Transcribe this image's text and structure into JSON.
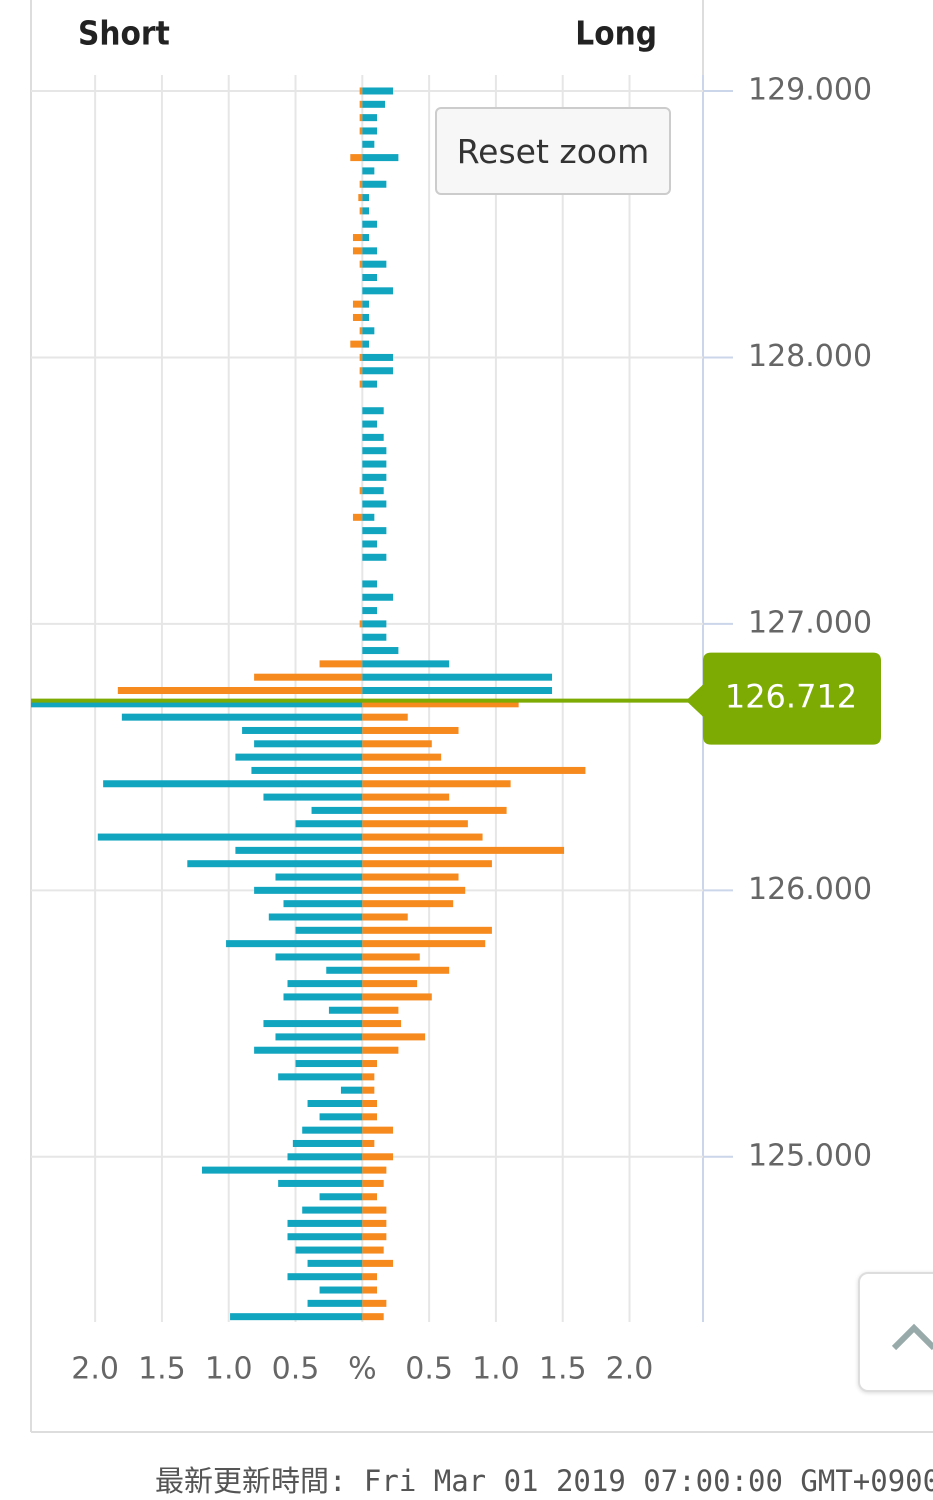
{
  "header": {
    "footer": "最新更新時間: Fri Mar 01 2019 07:00:00 GMT+0900",
    "reset_button": "Reset zoom"
  },
  "chart_data": {
    "type": "butterfly-bar",
    "y": [
      129,
      128.95,
      128.9,
      128.85,
      128.8,
      128.75,
      128.7,
      128.65,
      128.6,
      128.55,
      128.5,
      128.45,
      128.4,
      128.35,
      128.3,
      128.25,
      128.2,
      128.15,
      128.1,
      128.05,
      128,
      127.95,
      127.9,
      127.85,
      127.8,
      127.75,
      127.7,
      127.65,
      127.6,
      127.55,
      127.5,
      127.45,
      127.4,
      127.35,
      127.3,
      127.25,
      127.2,
      127.15,
      127.1,
      127.05,
      127,
      126.95,
      126.9,
      126.85,
      126.8,
      126.75,
      126.7,
      126.65,
      126.6,
      126.55,
      126.5,
      126.45,
      126.4,
      126.35,
      126.3,
      126.25,
      126.2,
      126.15,
      126.1,
      126.05,
      126,
      125.95,
      125.9,
      125.85,
      125.8,
      125.75,
      125.7,
      125.65,
      125.6,
      125.55,
      125.5,
      125.45,
      125.4,
      125.35,
      125.3,
      125.25,
      125.2,
      125.15,
      125.1,
      125.05,
      125,
      124.95,
      124.9,
      124.85,
      124.8,
      124.75,
      124.7,
      124.65,
      124.6,
      124.55,
      124.5,
      124.45,
      124.4
    ],
    "series": [
      {
        "name": "Short",
        "side": "left",
        "color": "#f68a1e",
        "color_below": "#12a5bf",
        "values": [
          0.02,
          0.02,
          0.02,
          0.02,
          0,
          0.09,
          0,
          0.02,
          0.03,
          0.02,
          0,
          0.07,
          0.07,
          0.02,
          0,
          0,
          0.07,
          0.07,
          0.02,
          0.09,
          0.02,
          0.02,
          0.02,
          0,
          0,
          0,
          0,
          0,
          0,
          0,
          0.02,
          0,
          0.07,
          0,
          0,
          0,
          0,
          0,
          0,
          0,
          0.02,
          0,
          0,
          0.32,
          0.81,
          1.83,
          2.48,
          1.8,
          0.9,
          0.81,
          0.95,
          0.83,
          1.94,
          0.74,
          0.38,
          0.5,
          1.98,
          0.95,
          1.31,
          0.65,
          0.81,
          0.59,
          0.7,
          0.5,
          1.02,
          0.65,
          0.27,
          0.56,
          0.59,
          0.25,
          0.74,
          0.65,
          0.81,
          0.5,
          0.63,
          0.16,
          0.41,
          0.32,
          0.45,
          0.52,
          0.56,
          1.2,
          0.63,
          0.32,
          0.45,
          0.56,
          0.56,
          0.5,
          0.41,
          0.56,
          0.32,
          0.41,
          0.99
        ]
      },
      {
        "name": "Long",
        "side": "right",
        "color": "#12a5bf",
        "color_below": "#f68a1e",
        "values": [
          0.23,
          0.17,
          0.11,
          0.11,
          0.09,
          0.27,
          0.09,
          0.18,
          0.05,
          0.05,
          0.11,
          0.05,
          0.11,
          0.18,
          0.11,
          0.23,
          0.05,
          0.05,
          0.09,
          0.05,
          0.23,
          0.23,
          0.11,
          0,
          0.16,
          0.11,
          0.16,
          0.18,
          0.18,
          0.18,
          0.16,
          0.18,
          0.09,
          0.18,
          0.11,
          0.18,
          0,
          0.11,
          0.23,
          0.11,
          0.18,
          0.18,
          0.27,
          0.65,
          1.42,
          1.42,
          1.17,
          0.34,
          0.72,
          0.52,
          0.59,
          1.67,
          1.11,
          0.65,
          1.08,
          0.79,
          0.9,
          1.51,
          0.97,
          0.72,
          0.77,
          0.68,
          0.34,
          0.97,
          0.92,
          0.43,
          0.65,
          0.41,
          0.52,
          0.27,
          0.29,
          0.47,
          0.27,
          0.11,
          0.09,
          0.09,
          0.11,
          0.11,
          0.23,
          0.09,
          0.23,
          0.18,
          0.16,
          0.11,
          0.18,
          0.18,
          0.18,
          0.16,
          0.23,
          0.11,
          0.11,
          0.18,
          0.16
        ]
      }
    ],
    "current_price": 126.712,
    "current_price_color": "#7dab04",
    "ylim": [
      124.38,
      129.06
    ],
    "yticks": [
      {
        "value": 125,
        "label": "125.000"
      },
      {
        "value": 126,
        "label": "126.000"
      },
      {
        "value": 127,
        "label": "127.000"
      },
      {
        "value": 128,
        "label": "128.000"
      },
      {
        "value": 129,
        "label": "129.000"
      }
    ],
    "xlim": [
      -2.48,
      2.55
    ],
    "xticks": [
      {
        "value": -2,
        "label": "2.0"
      },
      {
        "value": -1.5,
        "label": "1.5"
      },
      {
        "value": -1,
        "label": "1.0"
      },
      {
        "value": -0.5,
        "label": "0.5"
      },
      {
        "value": 0,
        "label": "%"
      },
      {
        "value": 0.5,
        "label": "0.5"
      },
      {
        "value": 1,
        "label": "1.0"
      },
      {
        "value": 1.5,
        "label": "1.5"
      },
      {
        "value": 2,
        "label": "2.0"
      }
    ],
    "grid": true
  }
}
